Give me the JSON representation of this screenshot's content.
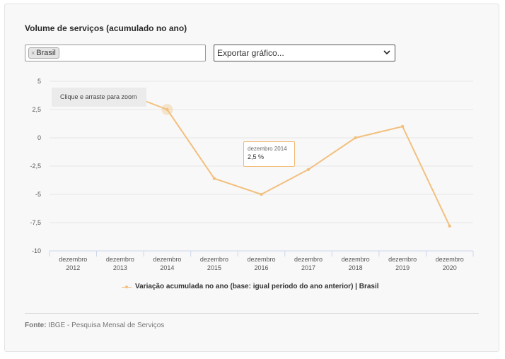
{
  "title": "Volume de serviços (acumulado no ano)",
  "filter": {
    "chips": [
      "Brasil"
    ],
    "remove_glyph": "×"
  },
  "export_select": {
    "value": "Exportar gráfico..."
  },
  "zoom_hint": "Clique e arraste para zoom",
  "tooltip": {
    "date": "dezembro 2014",
    "value": "2,5 %"
  },
  "footer": {
    "source_label": "Fonte:",
    "source_text": "IBGE - Pesquisa Mensal de Serviços"
  },
  "colors": {
    "series": "#f2c07e",
    "grid": "#e6e6e6"
  },
  "chart_data": {
    "type": "line",
    "x": [
      "dezembro 2012",
      "dezembro 2013",
      "dezembro 2014",
      "dezembro 2015",
      "dezembro 2016",
      "dezembro 2017",
      "dezembro 2018",
      "dezembro 2019",
      "dezembro 2020"
    ],
    "x_tick_lines": [
      [
        "dezembro",
        "2012"
      ],
      [
        "dezembro",
        "2013"
      ],
      [
        "dezembro",
        "2014"
      ],
      [
        "dezembro",
        "2015"
      ],
      [
        "dezembro",
        "2016"
      ],
      [
        "dezembro",
        "2017"
      ],
      [
        "dezembro",
        "2018"
      ],
      [
        "dezembro",
        "2019"
      ],
      [
        "dezembro",
        "2020"
      ]
    ],
    "series": [
      {
        "name": "Variação acumulada no ano (base: igual período do ano anterior) | Brasil",
        "values": [
          4.3,
          4.1,
          2.5,
          -3.6,
          -5.0,
          -2.8,
          0.0,
          1.0,
          -7.8
        ]
      }
    ],
    "ylim": [
      -10,
      5
    ],
    "yticks": [
      5,
      2.5,
      0,
      -2.5,
      -5,
      -7.5,
      -10
    ],
    "ytick_labels": [
      "5",
      "2,5",
      "0",
      "-2,5",
      "-5",
      "-7,5",
      "-10"
    ],
    "highlight_index": 2,
    "grid": true,
    "legend": "bottom"
  }
}
